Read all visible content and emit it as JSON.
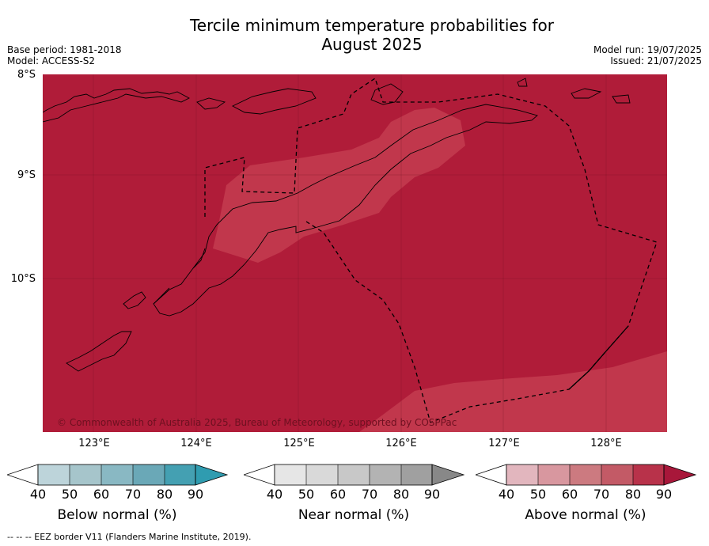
{
  "title": {
    "line1": "Tercile minimum temperature probabilities for",
    "line2": "August 2025"
  },
  "meta": {
    "base_period": "Base period: 1981-2018",
    "model": "Model: ACCESS-S2",
    "model_run": "Model run: 19/07/2025",
    "issued": "Issued: 21/07/2025"
  },
  "axes": {
    "latitude_labels": [
      "8°S",
      "9°S",
      "10°S"
    ],
    "longitude_labels": [
      "123°E",
      "124°E",
      "125°E",
      "126°E",
      "127°E",
      "128°E"
    ]
  },
  "map": {
    "copyright": "© Commonwealth of Australia 2025, Bureau of Meteorology, supported by COSPPac",
    "dominant_category": "Above normal",
    "dominant_color": "#b01c39",
    "secondary_color": "#c1374c"
  },
  "colorbars": [
    {
      "label": "Below normal (%)",
      "ticks": [
        "40",
        "50",
        "60",
        "70",
        "80",
        "90"
      ],
      "colors": [
        "#ffffff",
        "#bdd4da",
        "#a6c5cb",
        "#89b8c3",
        "#6aa8b7",
        "#44a0b2",
        "#2f9cb0"
      ]
    },
    {
      "label": "Near normal (%)",
      "ticks": [
        "40",
        "50",
        "60",
        "70",
        "80",
        "90"
      ],
      "colors": [
        "#ffffff",
        "#e6e6e6",
        "#d9d9d9",
        "#c8c8c8",
        "#b3b3b3",
        "#a0a0a0",
        "#888888"
      ]
    },
    {
      "label": "Above normal (%)",
      "ticks": [
        "40",
        "50",
        "60",
        "70",
        "80",
        "90"
      ],
      "colors": [
        "#ffffff",
        "#e2b6be",
        "#d8979f",
        "#cc7a80",
        "#c35a66",
        "#b8324a",
        "#a8173a"
      ]
    }
  ],
  "footer": "--  --  -- EEZ border V11 (Flanders Marine Institute, 2019)."
}
